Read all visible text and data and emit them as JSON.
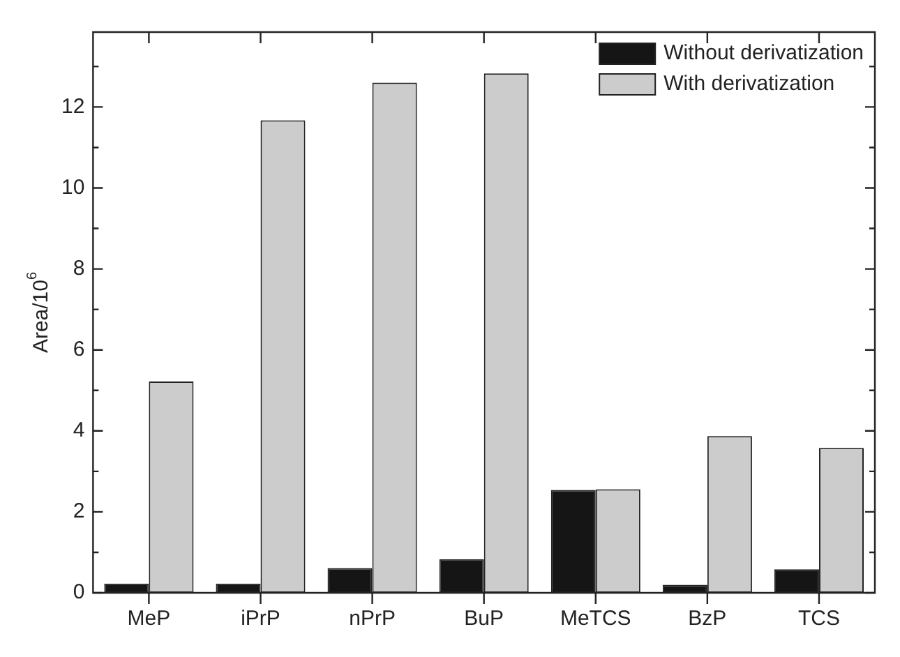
{
  "chart_data": {
    "type": "bar",
    "ylabel": "Area/10$^{6}$",
    "categories": [
      "MeP",
      "iPrP",
      "nPrP",
      "BuP",
      "MeTCS",
      "BzP",
      "TCS"
    ],
    "series": [
      {
        "name": "Without derivatization",
        "color": "#151515",
        "values": [
          0.23,
          0.23,
          0.61,
          0.83,
          2.54,
          0.2,
          0.58
        ]
      },
      {
        "name": "With derivatization",
        "color": "#cccccc",
        "values": [
          5.22,
          11.67,
          12.6,
          12.83,
          2.56,
          3.87,
          3.58
        ]
      }
    ],
    "ylim": [
      0,
      13.85
    ],
    "yticks": [
      0,
      {
        "value": 1,
        "label": null
      },
      2,
      {
        "value": 3,
        "label": null
      },
      4,
      {
        "value": 5,
        "label": null
      },
      6,
      {
        "value": 7,
        "label": null
      },
      8,
      {
        "value": 9,
        "label": null
      },
      10,
      {
        "value": 11,
        "label": null
      },
      12,
      {
        "value": 13,
        "label": null
      }
    ],
    "grid": false,
    "legend": "top right"
  }
}
